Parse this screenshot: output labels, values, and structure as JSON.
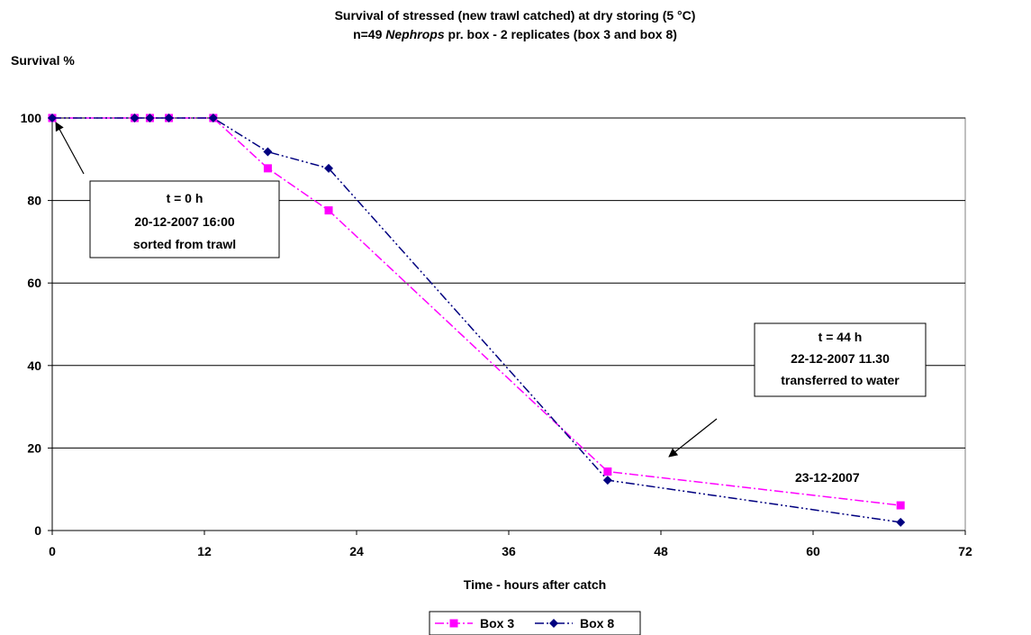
{
  "chart_data": {
    "type": "line",
    "title_line1": "Survival of stressed (new trawl catched) at dry storing (5 °C)",
    "title_line2_pre": "n=49 ",
    "title_line2_italic": "Nephrops",
    "title_line2_post": " pr. box - 2 replicates (box 3 and box 8)",
    "ylabel": "Survival %",
    "xlabel": "Time - hours after catch",
    "xlim": [
      0,
      72
    ],
    "ylim": [
      0,
      100
    ],
    "xticks": [
      0,
      12,
      24,
      36,
      48,
      60,
      72
    ],
    "yticks": [
      0,
      20,
      40,
      60,
      80,
      100
    ],
    "grid": "horizontal",
    "legend_position": "bottom-center",
    "series": [
      {
        "name": "Box 3",
        "color": "#ff00ff",
        "marker": "square",
        "points": [
          [
            0,
            100
          ],
          [
            6.5,
            100
          ],
          [
            7.7,
            100
          ],
          [
            9.2,
            100
          ],
          [
            12.7,
            100
          ],
          [
            17,
            87.8
          ],
          [
            21.8,
            77.6
          ],
          [
            43.8,
            14.3
          ],
          [
            66.9,
            6.1
          ]
        ]
      },
      {
        "name": "Box 8",
        "color": "#000080",
        "marker": "diamond",
        "points": [
          [
            0,
            100
          ],
          [
            6.5,
            100
          ],
          [
            7.7,
            100
          ],
          [
            9.2,
            100
          ],
          [
            12.7,
            100
          ],
          [
            17,
            91.8
          ],
          [
            21.8,
            87.8
          ],
          [
            43.8,
            12.2
          ],
          [
            66.9,
            2
          ]
        ]
      }
    ],
    "annotations": [
      {
        "lines": [
          "t = 0 h",
          "20-12-2007 16:00",
          "sorted from trawl"
        ],
        "target": [
          0,
          100
        ]
      },
      {
        "lines": [
          "t = 44 h",
          "22-12-2007 11.30",
          "transferred to water"
        ],
        "target": [
          45.5,
          17
        ]
      },
      {
        "lines": [
          "23-12-2007"
        ]
      }
    ]
  }
}
